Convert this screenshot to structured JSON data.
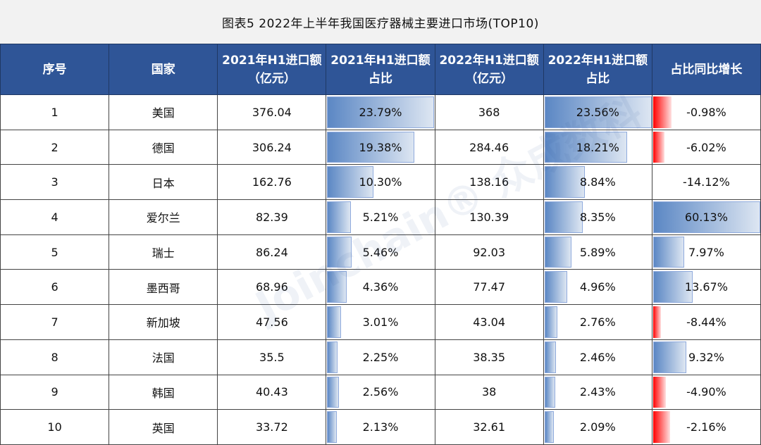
{
  "title": "图表5   2022年上半年我国医疗器械主要进口市场(TOP10)",
  "watermark": "Joinchain®众成数科",
  "colors": {
    "header": "#2f5597",
    "bar_positive": "#5b87c4",
    "bar_negative": "#ff0000"
  },
  "headers": [
    "序号",
    "国家",
    "2021年H1进口额（亿元）",
    "2021年H1进口额占比",
    "2022年H1进口额（亿元）",
    "2022年H1进口额占比",
    "占比同比增长"
  ],
  "chart_data": {
    "type": "table",
    "title": "图表5   2022年上半年我国医疗器械主要进口市场(TOP10)",
    "columns": [
      "序号",
      "国家",
      "2021年H1进口额（亿元）",
      "2021年H1进口额占比",
      "2022年H1进口额（亿元）",
      "2022年H1进口额占比",
      "占比同比增长"
    ],
    "rows": [
      [
        "1",
        "美国",
        "376.04",
        "23.79%",
        "368",
        "23.56%",
        "-0.98%"
      ],
      [
        "2",
        "德国",
        "306.24",
        "19.38%",
        "284.46",
        "18.21%",
        "-6.02%"
      ],
      [
        "3",
        "日本",
        "162.76",
        "10.30%",
        "138.16",
        "8.84%",
        "-14.12%"
      ],
      [
        "4",
        "爱尔兰",
        "82.39",
        "5.21%",
        "130.39",
        "8.35%",
        "60.13%"
      ],
      [
        "5",
        "瑞士",
        "86.24",
        "5.46%",
        "92.03",
        "5.89%",
        "7.97%"
      ],
      [
        "6",
        "墨西哥",
        "68.96",
        "4.36%",
        "77.47",
        "4.96%",
        "13.67%"
      ],
      [
        "7",
        "新加坡",
        "47.56",
        "3.01%",
        "43.04",
        "2.76%",
        "-8.44%"
      ],
      [
        "8",
        "法国",
        "35.5",
        "2.25%",
        "38.35",
        "2.46%",
        "9.32%"
      ],
      [
        "9",
        "韩国",
        "40.43",
        "2.56%",
        "38",
        "2.43%",
        "-4.90%"
      ],
      [
        "10",
        "英国",
        "33.72",
        "2.13%",
        "32.61",
        "2.09%",
        "-2.16%"
      ]
    ]
  }
}
